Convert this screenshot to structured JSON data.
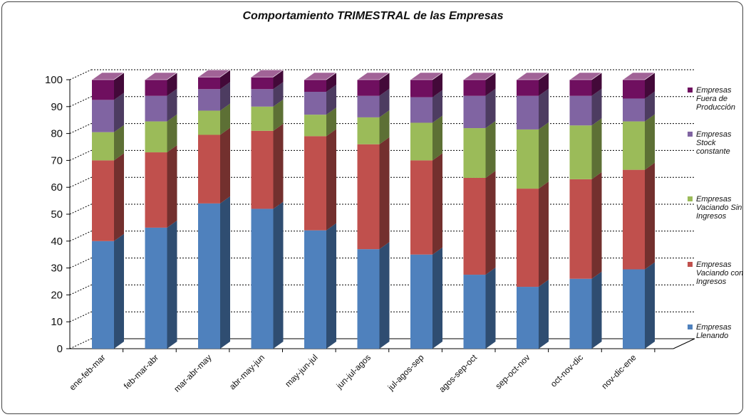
{
  "chart_data": {
    "type": "bar",
    "stacked": true,
    "three_d": true,
    "title": "Comportamiento TRIMESTRAL de las Empresas",
    "xlabel": "",
    "ylabel": "",
    "ylim": [
      0,
      100
    ],
    "yticks": [
      0,
      10,
      20,
      30,
      40,
      50,
      60,
      70,
      80,
      90,
      100
    ],
    "grid": true,
    "legend_position": "right",
    "categories": [
      "ene-feb-mar",
      "feb-mar-abr",
      "mar-abr-may",
      "abr-may-jun",
      "may-jun-jul",
      "jun-jul-agos",
      "jul-agos-sep",
      "agos-sep-oct",
      "sep-oct-nov",
      "oct-nov-dic",
      "nov-dic-ene"
    ],
    "series": [
      {
        "name": "Empresas Llenando",
        "color": "#4f81bd",
        "values": [
          40,
          45,
          54,
          52,
          44,
          37,
          35,
          27.5,
          23,
          26,
          29.5
        ]
      },
      {
        "name": "Empresas Vaciando con Ingresos",
        "color": "#c0504d",
        "values": [
          30,
          28,
          25.5,
          29,
          35,
          39,
          35,
          36,
          36.5,
          37,
          37
        ]
      },
      {
        "name": "Empresas Vaciando Sin Ingresos",
        "color": "#9bbb59",
        "values": [
          10.5,
          11.5,
          9,
          9,
          8,
          10,
          14,
          18.5,
          22,
          20,
          18
        ]
      },
      {
        "name": "Empresas Stock constante",
        "color": "#8064a2",
        "values": [
          12,
          9.5,
          8,
          6.5,
          8.5,
          8,
          9.5,
          12,
          12.5,
          11,
          8.5
        ]
      },
      {
        "name": "Empresas Fuera de Producción",
        "color": "#6f0f5f",
        "values": [
          7.5,
          6,
          4.5,
          4.5,
          4.5,
          6,
          6.5,
          6,
          6,
          6,
          7
        ]
      }
    ],
    "legend_lines": [
      [
        "Empresas",
        "Fuera de",
        "Producción"
      ],
      [
        "Empresas",
        "Stock",
        "constante"
      ],
      [
        "Empresas",
        "Vaciando Sin",
        "Ingresos"
      ],
      [
        "Empresas",
        "Vaciando con",
        "Ingresos"
      ],
      [
        "Empresas",
        "Llenando"
      ]
    ]
  }
}
